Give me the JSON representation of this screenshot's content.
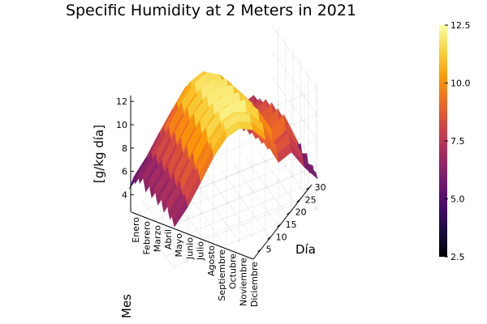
{
  "chart_data": {
    "type": "surface",
    "title": "Specific Humidity at 2 Meters in 2021",
    "xlabel": "Día",
    "ylabel": "Mes",
    "zlabel": "[g/kg día]",
    "x_ticks": [
      "5",
      "10",
      "15",
      "20",
      "25",
      "30"
    ],
    "x_range": [
      1,
      31
    ],
    "y_ticks": [
      "Enero",
      "Febrero",
      "Marzo",
      "Abril",
      "Mayo",
      "Junio",
      "Julio",
      "Agosto",
      "Septiembre",
      "Octubre",
      "Noviembre",
      "Diciembre"
    ],
    "z_ticks": [
      "4",
      "6",
      "8",
      "10",
      "12"
    ],
    "z_range": [
      2.5,
      12.5
    ],
    "colorbar": {
      "ticks": [
        "2.5",
        "5.0",
        "7.5",
        "10.0",
        "12.5"
      ],
      "range": [
        2.5,
        12.5
      ],
      "colormap": "inferno",
      "colors": [
        "#000004",
        "#1b0c41",
        "#4a0c6b",
        "#781c6d",
        "#a52c60",
        "#cf4446",
        "#ed6925",
        "#fb9b06",
        "#f7d13d",
        "#fcffa4"
      ]
    },
    "grid": true,
    "series": [
      {
        "month": "Enero",
        "values": [
          4.0,
          4.3,
          3.9,
          4.6,
          5.0,
          4.4,
          4.8,
          5.5,
          4.7,
          5.1,
          4.6,
          4.9,
          5.3,
          4.5,
          5.0,
          5.6,
          5.2,
          4.8,
          5.4,
          5.9,
          5.1,
          4.7,
          5.3,
          5.8,
          5.0,
          4.6,
          5.2,
          5.5,
          4.9,
          5.3,
          5.0
        ]
      },
      {
        "month": "Febrero",
        "values": [
          5.1,
          5.6,
          6.2,
          5.4,
          5.9,
          6.6,
          6.0,
          5.5,
          6.3,
          7.0,
          6.4,
          5.8,
          6.5,
          7.2,
          6.6,
          6.0,
          6.8,
          7.4,
          6.7,
          6.1,
          6.9,
          7.5,
          6.8,
          6.2,
          7.0,
          7.6,
          6.9,
          6.4,
          7.1,
          6.7,
          6.3
        ]
      },
      {
        "month": "Marzo",
        "values": [
          5.9,
          6.4,
          7.1,
          6.5,
          7.3,
          8.2,
          7.4,
          6.6,
          7.5,
          8.6,
          7.8,
          7.0,
          8.0,
          9.2,
          8.1,
          7.2,
          8.3,
          9.6,
          8.4,
          7.5,
          8.6,
          9.8,
          8.5,
          7.7,
          8.8,
          10.0,
          8.9,
          8.0,
          9.1,
          8.4,
          7.9
        ]
      },
      {
        "month": "Abril",
        "values": [
          5.5,
          6.0,
          6.6,
          6.1,
          7.0,
          7.8,
          6.9,
          6.2,
          7.2,
          8.0,
          7.3,
          6.6,
          7.6,
          8.5,
          7.7,
          6.9,
          7.9,
          8.9,
          8.0,
          7.2,
          8.2,
          9.1,
          8.1,
          7.4,
          8.4,
          9.3,
          8.3,
          7.6,
          8.5,
          8.0,
          7.5
        ]
      },
      {
        "month": "Mayo",
        "values": [
          6.6,
          7.2,
          7.9,
          8.6,
          7.8,
          8.9,
          9.6,
          8.7,
          9.3,
          10.2,
          9.4,
          8.8,
          9.8,
          10.6,
          9.7,
          9.1,
          10.1,
          10.9,
          10.0,
          9.4,
          10.3,
          11.1,
          10.2,
          9.6,
          10.5,
          11.2,
          10.4,
          9.8,
          10.6,
          10.1,
          9.7
        ]
      },
      {
        "month": "Junio",
        "values": [
          8.3,
          8.9,
          9.6,
          10.3,
          9.5,
          10.5,
          11.2,
          10.4,
          10.9,
          11.7,
          11.0,
          10.4,
          11.3,
          12.0,
          11.2,
          10.6,
          11.5,
          12.2,
          11.4,
          10.8,
          11.6,
          12.3,
          11.5,
          10.9,
          11.7,
          12.4,
          11.6,
          11.0,
          11.8,
          11.3,
          10.9
        ]
      },
      {
        "month": "Julio",
        "values": [
          9.2,
          9.8,
          10.5,
          11.0,
          10.4,
          11.3,
          11.9,
          11.1,
          11.6,
          12.3,
          11.7,
          11.1,
          11.9,
          12.4,
          11.8,
          11.2,
          12.0,
          12.5,
          11.9,
          11.4,
          12.1,
          12.5,
          11.9,
          11.5,
          12.2,
          12.5,
          12.0,
          11.6,
          12.2,
          11.8,
          11.4
        ]
      },
      {
        "month": "Agosto",
        "values": [
          8.6,
          9.2,
          9.9,
          10.6,
          10.0,
          10.9,
          11.5,
          10.8,
          11.2,
          11.9,
          11.3,
          10.7,
          11.5,
          12.1,
          11.4,
          10.9,
          11.7,
          12.2,
          11.5,
          11.0,
          11.8,
          12.3,
          11.6,
          11.1,
          11.9,
          12.3,
          11.7,
          11.2,
          11.9,
          11.5,
          11.1
        ]
      },
      {
        "month": "Septiembre",
        "values": [
          7.4,
          8.0,
          8.7,
          9.3,
          8.8,
          9.7,
          10.3,
          9.6,
          10.1,
          10.8,
          10.2,
          9.6,
          10.4,
          11.0,
          10.3,
          9.7,
          10.6,
          11.2,
          10.4,
          9.9,
          10.7,
          11.3,
          10.5,
          10.0,
          10.8,
          11.4,
          10.6,
          10.1,
          10.8,
          10.4,
          10.0
        ]
      },
      {
        "month": "Octubre",
        "values": [
          6.1,
          6.7,
          7.3,
          7.9,
          7.4,
          8.2,
          8.8,
          8.1,
          8.6,
          9.3,
          8.7,
          8.1,
          8.9,
          9.5,
          8.8,
          8.2,
          9.1,
          9.7,
          8.9,
          8.4,
          9.2,
          9.8,
          9.0,
          8.5,
          9.3,
          9.9,
          9.1,
          8.6,
          9.2,
          8.8,
          8.4
        ]
      },
      {
        "month": "Noviembre",
        "values": [
          4.8,
          5.3,
          5.9,
          6.4,
          6.0,
          6.7,
          7.2,
          6.6,
          7.0,
          7.6,
          7.1,
          6.6,
          7.3,
          7.8,
          7.2,
          6.7,
          7.4,
          7.9,
          7.3,
          6.9,
          7.5,
          8.0,
          7.4,
          7.0,
          7.6,
          8.1,
          7.5,
          7.1,
          7.6,
          7.3,
          6.9
        ]
      },
      {
        "month": "Diciembre",
        "values": [
          3.8,
          4.2,
          4.7,
          5.2,
          4.9,
          5.5,
          6.0,
          5.4,
          5.8,
          6.3,
          5.9,
          5.4,
          6.1,
          6.6,
          6.0,
          5.6,
          6.2,
          6.7,
          6.1,
          5.7,
          6.3,
          6.8,
          6.2,
          5.8,
          6.4,
          6.9,
          6.3,
          5.9,
          6.4,
          6.1,
          5.8
        ]
      }
    ]
  }
}
